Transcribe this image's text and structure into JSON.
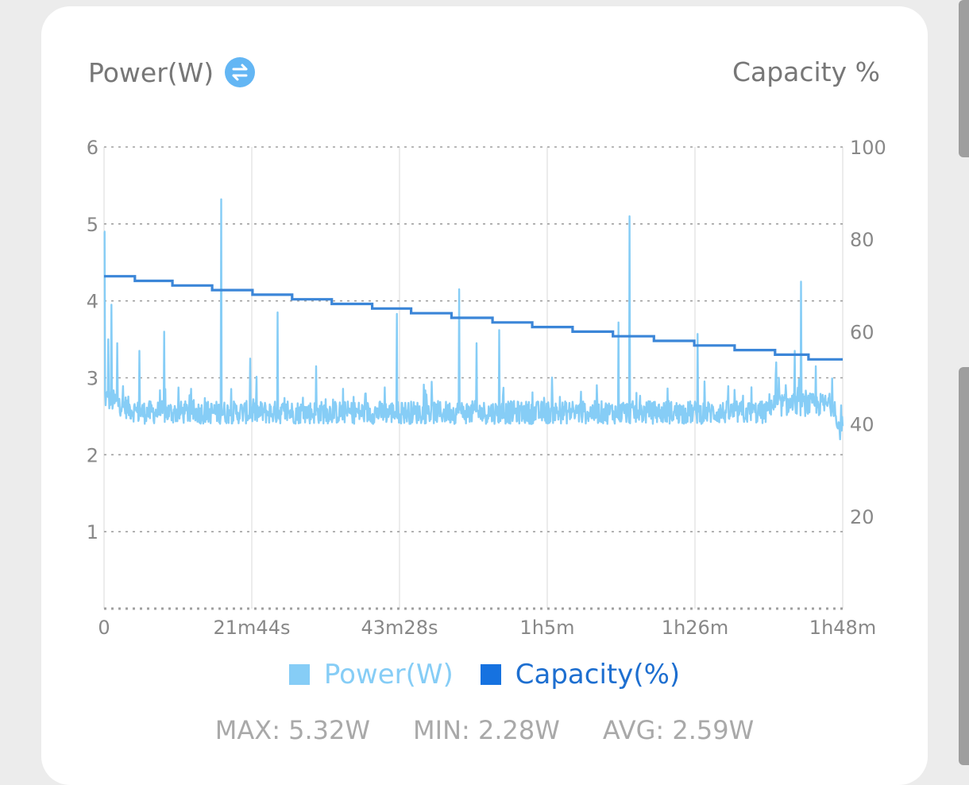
{
  "header": {
    "left_title": "Power(W)",
    "swap_icon": "swap-arrows-icon",
    "right_title": "Capacity %"
  },
  "colors": {
    "power": "#86cdf6",
    "capacity": "#3b86d8",
    "legend_power": "#86cdf6",
    "legend_capacity": "#1672e0",
    "legend_capacity_text": "#1e6fd0",
    "grid": "#a0a0a0",
    "axis_text": "#888888"
  },
  "legend": {
    "power_label": "Power(W)",
    "capacity_label": "Capacity(%)"
  },
  "stats": {
    "max": "MAX: 5.32W",
    "min": "MIN: 2.28W",
    "avg": "AVG: 2.59W"
  },
  "chart_data": {
    "type": "line",
    "x_unit": "minutes",
    "x_range": [
      0,
      108
    ],
    "x_tick_labels": [
      "0",
      "21m44s",
      "43m28s",
      "1h5m",
      "1h26m",
      "1h48m"
    ],
    "y_left": {
      "label": "",
      "range": [
        0,
        6
      ],
      "ticks": [
        "1",
        "2",
        "3",
        "4",
        "5",
        "6"
      ]
    },
    "y_right": {
      "label": "",
      "range": [
        0,
        100
      ],
      "ticks": [
        "20",
        "40",
        "60",
        "80",
        "100"
      ]
    },
    "grid": true,
    "legend_position": "bottom",
    "series": [
      {
        "name": "Power(W)",
        "axis": "left",
        "baseline_w": 2.55,
        "noise_w": 0.1,
        "spikes": [
          {
            "x": 0.1,
            "y": 4.9
          },
          {
            "x": 0.6,
            "y": 3.5
          },
          {
            "x": 1.1,
            "y": 3.95
          },
          {
            "x": 1.9,
            "y": 3.45
          },
          {
            "x": 5.2,
            "y": 3.35
          },
          {
            "x": 8.8,
            "y": 3.6
          },
          {
            "x": 17.1,
            "y": 5.32
          },
          {
            "x": 21.4,
            "y": 3.25
          },
          {
            "x": 25.4,
            "y": 3.85
          },
          {
            "x": 31.0,
            "y": 3.15
          },
          {
            "x": 42.8,
            "y": 3.83
          },
          {
            "x": 51.9,
            "y": 4.15
          },
          {
            "x": 54.5,
            "y": 3.45
          },
          {
            "x": 57.8,
            "y": 3.62
          },
          {
            "x": 75.2,
            "y": 3.72
          },
          {
            "x": 76.8,
            "y": 5.1
          },
          {
            "x": 86.8,
            "y": 3.57
          },
          {
            "x": 98.3,
            "y": 3.2
          },
          {
            "x": 101.0,
            "y": 3.35
          },
          {
            "x": 101.9,
            "y": 4.25
          },
          {
            "x": 104.1,
            "y": 3.15
          }
        ],
        "end_dip_w": 2.35
      },
      {
        "name": "Capacity(%)",
        "axis": "right",
        "steps": [
          {
            "x0": 0,
            "x1": 4.5,
            "y": 72
          },
          {
            "x0": 4.5,
            "x1": 10.0,
            "y": 71
          },
          {
            "x0": 10.0,
            "x1": 15.8,
            "y": 70
          },
          {
            "x0": 15.8,
            "x1": 21.7,
            "y": 69
          },
          {
            "x0": 21.7,
            "x1": 27.5,
            "y": 68
          },
          {
            "x0": 27.5,
            "x1": 33.3,
            "y": 67
          },
          {
            "x0": 33.3,
            "x1": 39.2,
            "y": 66
          },
          {
            "x0": 39.2,
            "x1": 44.9,
            "y": 65
          },
          {
            "x0": 44.9,
            "x1": 50.8,
            "y": 64
          },
          {
            "x0": 50.8,
            "x1": 56.8,
            "y": 63
          },
          {
            "x0": 56.8,
            "x1": 62.6,
            "y": 62
          },
          {
            "x0": 62.6,
            "x1": 68.5,
            "y": 61
          },
          {
            "x0": 68.5,
            "x1": 74.4,
            "y": 60
          },
          {
            "x0": 74.4,
            "x1": 80.4,
            "y": 59
          },
          {
            "x0": 80.4,
            "x1": 86.3,
            "y": 58
          },
          {
            "x0": 86.3,
            "x1": 92.2,
            "y": 57
          },
          {
            "x0": 92.2,
            "x1": 98.1,
            "y": 56
          },
          {
            "x0": 98.1,
            "x1": 103.0,
            "y": 55
          },
          {
            "x0": 103.0,
            "x1": 108,
            "y": 54
          }
        ]
      }
    ]
  }
}
